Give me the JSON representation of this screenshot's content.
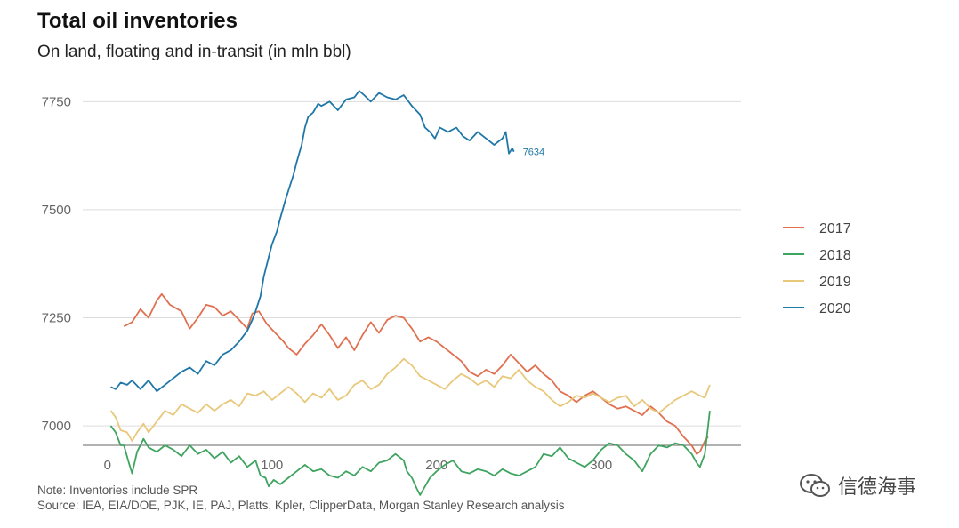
{
  "chart_data": {
    "type": "line",
    "title": "Total oil inventories",
    "subtitle": "On land, floating and in-transit (in mln bbl)",
    "xlabel": "",
    "ylabel": "",
    "xlim": [
      -15,
      385
    ],
    "ylim": [
      6955,
      7800
    ],
    "x_ticks": [
      0,
      100,
      200,
      300
    ],
    "y_ticks": [
      7000,
      7250,
      7500,
      7750
    ],
    "grid": "horizontal",
    "legend_position": "right",
    "colors": {
      "2017": "#e07050",
      "2018": "#3fa460",
      "2019": "#e8c87a",
      "2020": "#1f77a8"
    },
    "series": [
      {
        "name": "2017",
        "color": "#e07050",
        "points": [
          [
            10,
            7230
          ],
          [
            15,
            7240
          ],
          [
            20,
            7270
          ],
          [
            25,
            7250
          ],
          [
            30,
            7290
          ],
          [
            33,
            7305
          ],
          [
            38,
            7280
          ],
          [
            45,
            7265
          ],
          [
            50,
            7225
          ],
          [
            55,
            7250
          ],
          [
            60,
            7280
          ],
          [
            65,
            7275
          ],
          [
            70,
            7255
          ],
          [
            75,
            7265
          ],
          [
            80,
            7245
          ],
          [
            85,
            7225
          ],
          [
            88,
            7260
          ],
          [
            92,
            7265
          ],
          [
            97,
            7235
          ],
          [
            102,
            7215
          ],
          [
            107,
            7195
          ],
          [
            110,
            7180
          ],
          [
            115,
            7165
          ],
          [
            120,
            7190
          ],
          [
            125,
            7210
          ],
          [
            130,
            7235
          ],
          [
            135,
            7210
          ],
          [
            140,
            7180
          ],
          [
            145,
            7205
          ],
          [
            150,
            7175
          ],
          [
            155,
            7210
          ],
          [
            160,
            7240
          ],
          [
            165,
            7215
          ],
          [
            170,
            7245
          ],
          [
            175,
            7255
          ],
          [
            180,
            7250
          ],
          [
            185,
            7225
          ],
          [
            190,
            7195
          ],
          [
            195,
            7205
          ],
          [
            200,
            7195
          ],
          [
            205,
            7180
          ],
          [
            210,
            7165
          ],
          [
            215,
            7150
          ],
          [
            220,
            7125
          ],
          [
            225,
            7115
          ],
          [
            230,
            7130
          ],
          [
            235,
            7120
          ],
          [
            240,
            7140
          ],
          [
            245,
            7165
          ],
          [
            250,
            7145
          ],
          [
            255,
            7125
          ],
          [
            260,
            7140
          ],
          [
            265,
            7120
          ],
          [
            270,
            7105
          ],
          [
            275,
            7080
          ],
          [
            280,
            7070
          ],
          [
            285,
            7055
          ],
          [
            290,
            7070
          ],
          [
            295,
            7080
          ],
          [
            300,
            7065
          ],
          [
            305,
            7050
          ],
          [
            310,
            7040
          ],
          [
            315,
            7045
          ],
          [
            320,
            7035
          ],
          [
            325,
            7025
          ],
          [
            330,
            7045
          ],
          [
            335,
            7030
          ],
          [
            340,
            7010
          ],
          [
            345,
            7000
          ],
          [
            350,
            6975
          ],
          [
            355,
            6955
          ],
          [
            358,
            6935
          ],
          [
            360,
            6940
          ],
          [
            363,
            6965
          ],
          [
            365,
            6975
          ]
        ]
      },
      {
        "name": "2018",
        "color": "#3fa460",
        "points": [
          [
            2,
            7000
          ],
          [
            5,
            6985
          ],
          [
            8,
            6955
          ],
          [
            10,
            6955
          ],
          [
            13,
            6915
          ],
          [
            15,
            6890
          ],
          [
            18,
            6940
          ],
          [
            22,
            6970
          ],
          [
            25,
            6950
          ],
          [
            30,
            6940
          ],
          [
            35,
            6955
          ],
          [
            40,
            6945
          ],
          [
            45,
            6930
          ],
          [
            50,
            6955
          ],
          [
            55,
            6935
          ],
          [
            60,
            6945
          ],
          [
            65,
            6925
          ],
          [
            70,
            6940
          ],
          [
            75,
            6915
          ],
          [
            80,
            6930
          ],
          [
            85,
            6905
          ],
          [
            90,
            6920
          ],
          [
            93,
            6885
          ],
          [
            96,
            6880
          ],
          [
            98,
            6860
          ],
          [
            101,
            6875
          ],
          [
            105,
            6865
          ],
          [
            110,
            6880
          ],
          [
            115,
            6895
          ],
          [
            120,
            6910
          ],
          [
            125,
            6895
          ],
          [
            130,
            6900
          ],
          [
            135,
            6885
          ],
          [
            140,
            6880
          ],
          [
            145,
            6895
          ],
          [
            150,
            6885
          ],
          [
            155,
            6905
          ],
          [
            160,
            6895
          ],
          [
            165,
            6915
          ],
          [
            170,
            6920
          ],
          [
            175,
            6935
          ],
          [
            180,
            6920
          ],
          [
            182,
            6895
          ],
          [
            185,
            6880
          ],
          [
            188,
            6855
          ],
          [
            190,
            6840
          ],
          [
            193,
            6860
          ],
          [
            196,
            6880
          ],
          [
            200,
            6895
          ],
          [
            205,
            6910
          ],
          [
            210,
            6920
          ],
          [
            215,
            6895
          ],
          [
            220,
            6890
          ],
          [
            225,
            6900
          ],
          [
            230,
            6895
          ],
          [
            235,
            6885
          ],
          [
            240,
            6900
          ],
          [
            245,
            6890
          ],
          [
            250,
            6885
          ],
          [
            255,
            6895
          ],
          [
            260,
            6905
          ],
          [
            265,
            6935
          ],
          [
            270,
            6930
          ],
          [
            275,
            6950
          ],
          [
            280,
            6925
          ],
          [
            285,
            6915
          ],
          [
            290,
            6905
          ],
          [
            295,
            6920
          ],
          [
            300,
            6945
          ],
          [
            305,
            6960
          ],
          [
            310,
            6955
          ],
          [
            315,
            6935
          ],
          [
            320,
            6920
          ],
          [
            325,
            6895
          ],
          [
            330,
            6935
          ],
          [
            335,
            6955
          ],
          [
            340,
            6950
          ],
          [
            345,
            6960
          ],
          [
            350,
            6955
          ],
          [
            355,
            6935
          ],
          [
            358,
            6915
          ],
          [
            360,
            6905
          ],
          [
            363,
            6935
          ],
          [
            365,
            7000
          ],
          [
            366,
            7035
          ]
        ]
      },
      {
        "name": "2019",
        "color": "#e8c87a",
        "points": [
          [
            2,
            7035
          ],
          [
            5,
            7020
          ],
          [
            8,
            6990
          ],
          [
            12,
            6985
          ],
          [
            15,
            6965
          ],
          [
            18,
            6985
          ],
          [
            22,
            7005
          ],
          [
            25,
            6985
          ],
          [
            30,
            7010
          ],
          [
            35,
            7035
          ],
          [
            40,
            7025
          ],
          [
            45,
            7050
          ],
          [
            50,
            7040
          ],
          [
            55,
            7030
          ],
          [
            60,
            7050
          ],
          [
            65,
            7035
          ],
          [
            70,
            7050
          ],
          [
            75,
            7060
          ],
          [
            80,
            7045
          ],
          [
            85,
            7075
          ],
          [
            90,
            7070
          ],
          [
            95,
            7080
          ],
          [
            100,
            7060
          ],
          [
            105,
            7075
          ],
          [
            110,
            7090
          ],
          [
            115,
            7075
          ],
          [
            120,
            7055
          ],
          [
            125,
            7075
          ],
          [
            130,
            7065
          ],
          [
            135,
            7085
          ],
          [
            140,
            7060
          ],
          [
            145,
            7070
          ],
          [
            150,
            7095
          ],
          [
            155,
            7105
          ],
          [
            160,
            7085
          ],
          [
            165,
            7095
          ],
          [
            170,
            7120
          ],
          [
            175,
            7135
          ],
          [
            180,
            7155
          ],
          [
            185,
            7140
          ],
          [
            190,
            7115
          ],
          [
            195,
            7105
          ],
          [
            200,
            7095
          ],
          [
            205,
            7085
          ],
          [
            210,
            7105
          ],
          [
            215,
            7120
          ],
          [
            220,
            7110
          ],
          [
            225,
            7095
          ],
          [
            230,
            7105
          ],
          [
            235,
            7090
          ],
          [
            240,
            7115
          ],
          [
            245,
            7110
          ],
          [
            250,
            7130
          ],
          [
            255,
            7105
          ],
          [
            260,
            7090
          ],
          [
            265,
            7080
          ],
          [
            270,
            7060
          ],
          [
            275,
            7045
          ],
          [
            280,
            7055
          ],
          [
            285,
            7070
          ],
          [
            290,
            7065
          ],
          [
            295,
            7075
          ],
          [
            300,
            7065
          ],
          [
            305,
            7055
          ],
          [
            310,
            7065
          ],
          [
            315,
            7070
          ],
          [
            320,
            7045
          ],
          [
            325,
            7060
          ],
          [
            330,
            7040
          ],
          [
            335,
            7030
          ],
          [
            340,
            7045
          ],
          [
            345,
            7060
          ],
          [
            350,
            7070
          ],
          [
            355,
            7080
          ],
          [
            360,
            7070
          ],
          [
            363,
            7065
          ],
          [
            366,
            7095
          ]
        ]
      },
      {
        "name": "2020",
        "color": "#1f77a8",
        "points": [
          [
            2,
            7090
          ],
          [
            5,
            7085
          ],
          [
            8,
            7100
          ],
          [
            12,
            7095
          ],
          [
            15,
            7105
          ],
          [
            20,
            7085
          ],
          [
            25,
            7105
          ],
          [
            30,
            7080
          ],
          [
            35,
            7095
          ],
          [
            40,
            7110
          ],
          [
            45,
            7125
          ],
          [
            50,
            7135
          ],
          [
            55,
            7120
          ],
          [
            60,
            7150
          ],
          [
            65,
            7140
          ],
          [
            70,
            7165
          ],
          [
            75,
            7175
          ],
          [
            80,
            7195
          ],
          [
            85,
            7220
          ],
          [
            88,
            7245
          ],
          [
            90,
            7265
          ],
          [
            93,
            7300
          ],
          [
            95,
            7345
          ],
          [
            98,
            7390
          ],
          [
            100,
            7420
          ],
          [
            103,
            7450
          ],
          [
            105,
            7480
          ],
          [
            108,
            7520
          ],
          [
            110,
            7545
          ],
          [
            113,
            7580
          ],
          [
            115,
            7610
          ],
          [
            118,
            7650
          ],
          [
            120,
            7690
          ],
          [
            122,
            7715
          ],
          [
            125,
            7725
          ],
          [
            128,
            7745
          ],
          [
            130,
            7740
          ],
          [
            135,
            7750
          ],
          [
            140,
            7730
          ],
          [
            145,
            7755
          ],
          [
            150,
            7760
          ],
          [
            153,
            7775
          ],
          [
            156,
            7765
          ],
          [
            160,
            7750
          ],
          [
            165,
            7770
          ],
          [
            170,
            7760
          ],
          [
            175,
            7755
          ],
          [
            180,
            7765
          ],
          [
            185,
            7740
          ],
          [
            190,
            7720
          ],
          [
            193,
            7690
          ],
          [
            196,
            7680
          ],
          [
            199,
            7665
          ],
          [
            202,
            7690
          ],
          [
            207,
            7680
          ],
          [
            212,
            7690
          ],
          [
            216,
            7670
          ],
          [
            220,
            7660
          ],
          [
            225,
            7680
          ],
          [
            230,
            7665
          ],
          [
            235,
            7650
          ],
          [
            240,
            7665
          ],
          [
            242,
            7680
          ],
          [
            244,
            7630
          ],
          [
            246,
            7642
          ],
          [
            247,
            7634
          ]
        ]
      }
    ],
    "end_label": {
      "series": "2020",
      "x": 247,
      "y": 7634,
      "text": "7634"
    }
  },
  "notes": {
    "line1": "Note: Inventories include SPR",
    "line2": "Source: IEA, EIA/DOE, PJK, IE, PAJ, Platts, Kpler, ClipperData, Morgan Stanley Research analysis"
  },
  "watermark": {
    "text": "信德海事",
    "icon": "wechat-icon"
  }
}
